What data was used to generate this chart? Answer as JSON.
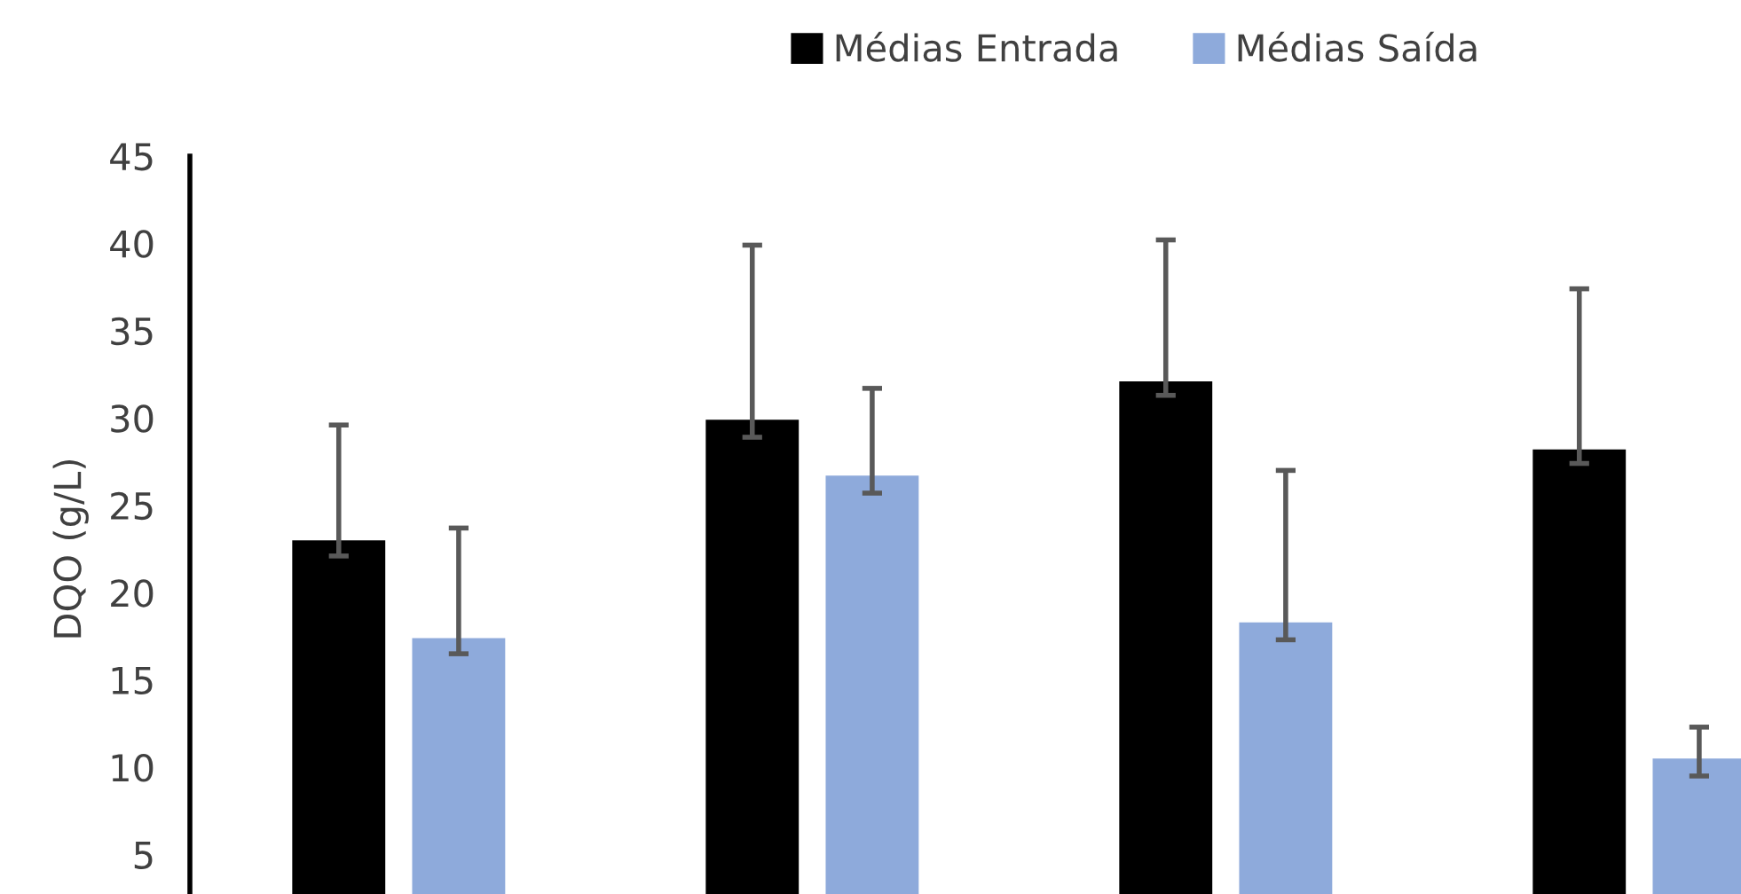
{
  "chart_data": {
    "type": "bar",
    "ylabel": "DQO (g/L)",
    "categories": [
      null,
      null,
      null,
      null
    ],
    "series": [
      {
        "name": "Médias Entrada",
        "color": "#000000",
        "values": [
          23.0,
          29.9,
          32.1,
          28.2
        ],
        "errors": [
          [
            22.1,
            29.6
          ],
          [
            28.9,
            39.9
          ],
          [
            31.3,
            40.2
          ],
          [
            27.4,
            37.4
          ]
        ]
      },
      {
        "name": "Médias Saída",
        "color": "#8eaadb",
        "values": [
          17.4,
          26.7,
          18.3,
          10.5
        ],
        "errors": [
          [
            16.5,
            23.7
          ],
          [
            25.7,
            31.7
          ],
          [
            17.3,
            27.0
          ],
          [
            9.5,
            12.3
          ]
        ]
      }
    ],
    "ylim": [
      0,
      45
    ],
    "yticks": [
      5,
      10,
      15,
      20,
      25,
      30,
      35,
      40,
      45
    ],
    "grid": false,
    "legend": "top"
  }
}
